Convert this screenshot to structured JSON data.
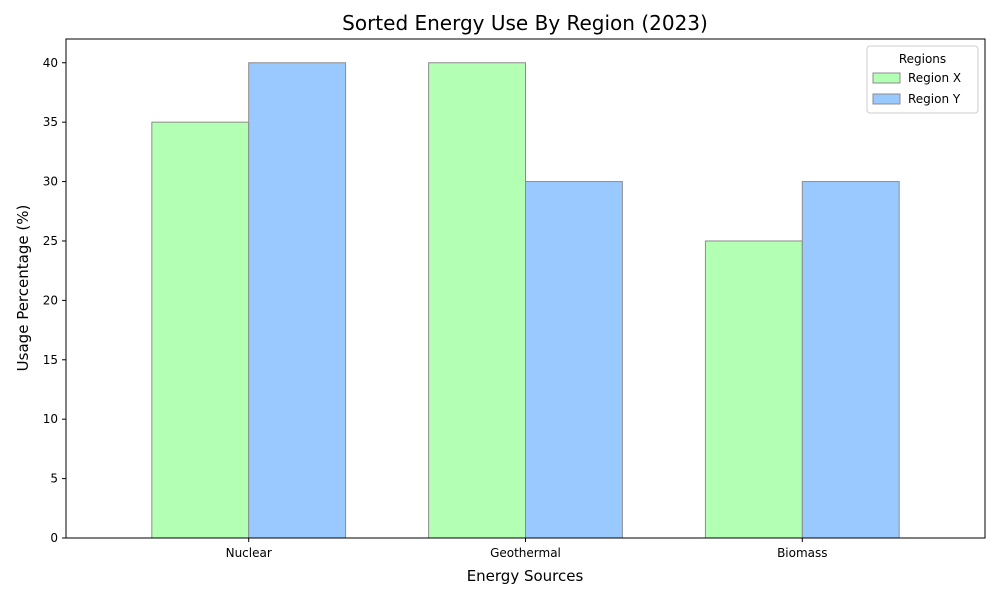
{
  "chart_data": {
    "type": "bar",
    "title": "Sorted Energy Use By Region (2023)",
    "xlabel": "Energy Sources",
    "ylabel": "Usage Percentage (%)",
    "categories": [
      "Nuclear",
      "Geothermal",
      "Biomass"
    ],
    "series": [
      {
        "name": "Region X",
        "values": [
          35,
          40,
          25
        ],
        "color": "#b3ffb3"
      },
      {
        "name": "Region Y",
        "values": [
          40,
          30,
          30
        ],
        "color": "#99c9ff"
      }
    ],
    "ylim": [
      0,
      42
    ],
    "yticks": [
      0,
      5,
      10,
      15,
      20,
      25,
      30,
      35,
      40
    ],
    "grid": false,
    "legend": {
      "title": "Regions",
      "placement": "top-right"
    },
    "edge_color": "#8c8c8c"
  }
}
